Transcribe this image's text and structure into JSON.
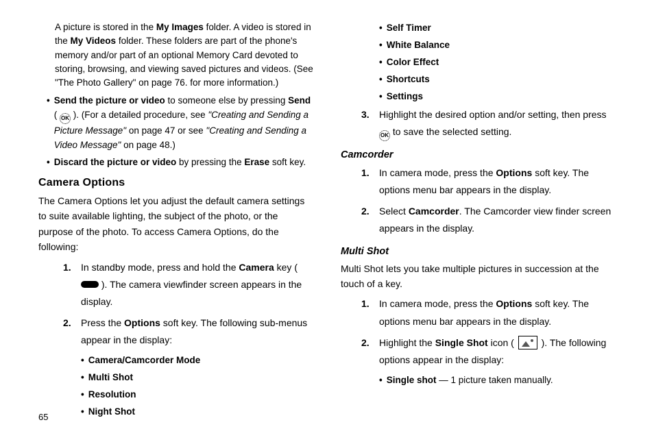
{
  "pageNumber": "65",
  "left": {
    "intro": {
      "pre": "A picture is stored in the ",
      "b1": "My Images",
      "mid1": " folder. A video is stored in the ",
      "b2": "My Videos",
      "tail": " folder. These folders are part of the phone's memory and/or part of an optional Memory Card devoted to storing, browsing, and viewing saved pictures and videos. (See \"The Photo Gallery\" on page 76. for more information.)"
    },
    "bullet1": {
      "b1": "Send the picture or video",
      "t1": " to someone else by pressing ",
      "b2": "Send",
      "t2": " ( ",
      "t3": " ). (For a detailed procedure, see ",
      "i1": "\"Creating and Sending a Picture Message\"",
      "t4": " on page 47 or see ",
      "i2": "\"Creating and Sending a Video Message\"",
      "t5": " on page 48.)"
    },
    "bullet2": {
      "b1": "Discard the picture or video",
      "t1": " by pressing the ",
      "b2": "Erase",
      "t2": " soft key."
    },
    "h2": "Camera Options",
    "optIntro": "The Camera Options let you adjust the default camera settings to suite available lighting, the subject of the photo, or the purpose of the photo. To access Camera Options, do the following:",
    "step1": {
      "t1": "In standby mode, press and hold the ",
      "b1": "Camera",
      "t2": " key ( ",
      "t3": " ). The camera viewfinder screen appears in the display."
    },
    "step2": {
      "t1": "Press the ",
      "b1": "Options",
      "t2": " soft key. The following sub-menus appear in the display:"
    },
    "subs": [
      "Camera/Camcorder Mode",
      "Multi Shot",
      "Resolution",
      "Night Shot"
    ]
  },
  "right": {
    "subs": [
      "Self Timer",
      "White Balance",
      "Color Effect",
      "Shortcuts",
      "Settings"
    ],
    "step3": {
      "t1": "Highlight the desired option and/or setting, then press ",
      "t2": " to save the selected setting."
    },
    "h3a": "Camcorder",
    "cam1": {
      "t1": "In camera mode, press the ",
      "b1": "Options",
      "t2": " soft key. The options menu bar appears in the display."
    },
    "cam2": {
      "t1": "Select ",
      "b1": "Camcorder",
      "t2": ". The Camcorder view finder screen appears in the display."
    },
    "h3b": "Multi Shot",
    "msIntro": "Multi Shot lets you take multiple pictures in succession at the touch of a key.",
    "ms1": {
      "t1": "In camera mode, press the ",
      "b1": "Options",
      "t2": " soft key. The options menu bar appears in the display."
    },
    "ms2": {
      "t1": "Highlight the ",
      "b1": "Single Shot",
      "t2": " icon ( ",
      "t3": " ). The following options appear in the display:"
    },
    "msSub": {
      "b1": "Single shot",
      "t1": " — 1 picture taken manually."
    }
  }
}
